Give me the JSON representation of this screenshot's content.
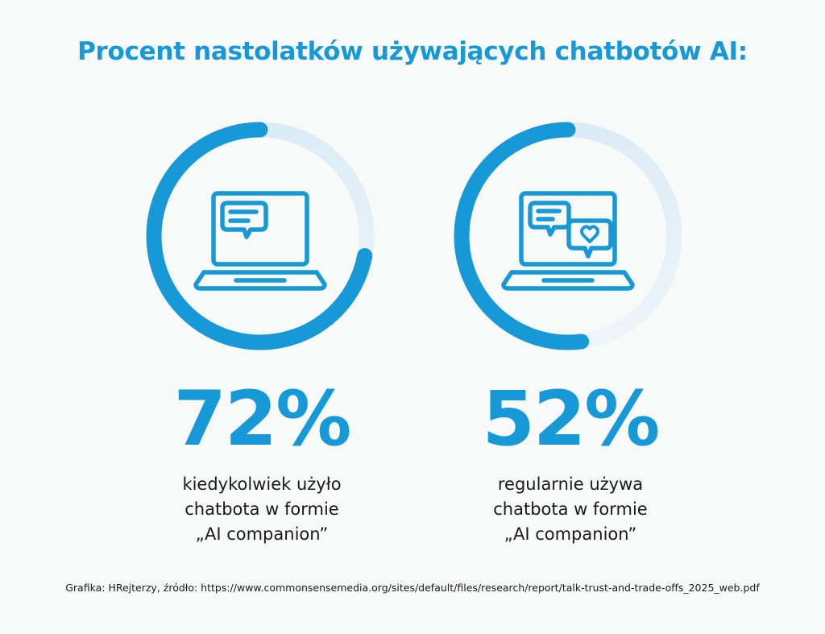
{
  "title": "Procent nastolatków używających chatbotów AI:",
  "chart_data": {
    "type": "donut",
    "series": [
      {
        "value": 72,
        "label": "72%",
        "description": [
          "kiedykolwiek użyło",
          "chatbota w formie",
          "„AI companion”"
        ],
        "icon": "laptop-chat-icon"
      },
      {
        "value": 52,
        "label": "52%",
        "description": [
          "regularnie używa",
          "chatbota w formie",
          "„AI companion”"
        ],
        "icon": "laptop-chat-heart-icon"
      }
    ],
    "max": 100
  },
  "colors": {
    "accent": "#1798d7",
    "track": "#dcecf6",
    "background": "#f8f9f9",
    "text": "#1a1a1a"
  },
  "footer": "Grafika: HRejterzy, źródło: https://www.commonsensemedia.org/sites/default/files/research/report/talk-trust-and-trade-offs_2025_web.pdf"
}
